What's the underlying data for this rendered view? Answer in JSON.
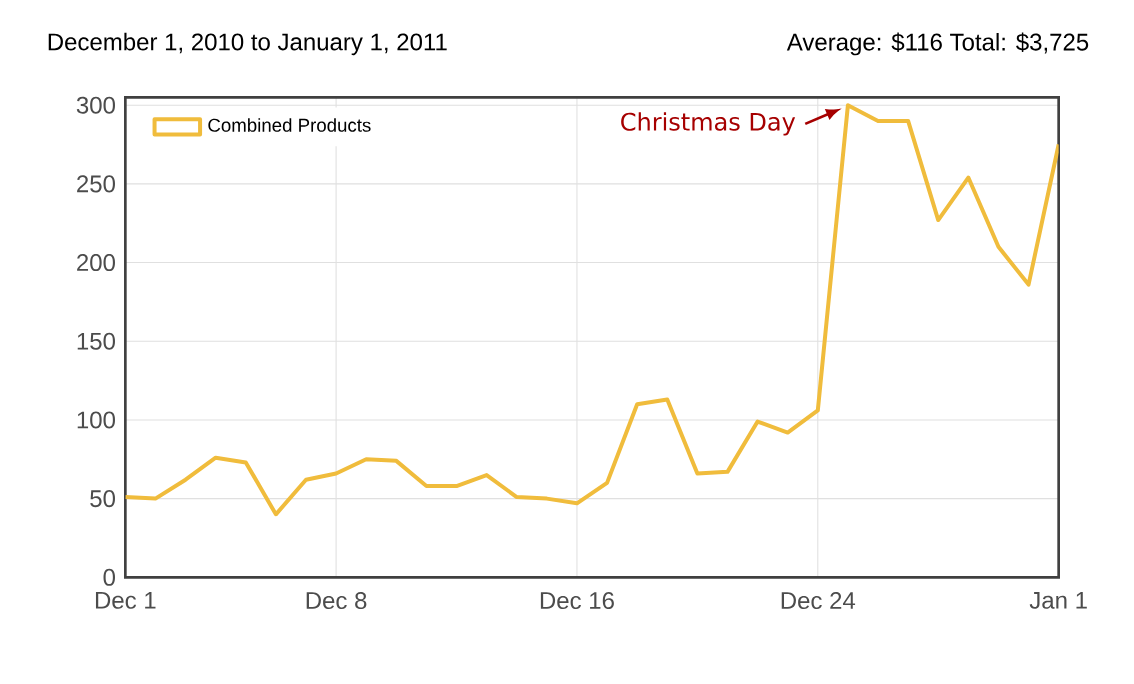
{
  "chart_data": {
    "type": "line",
    "title": "December 1, 2010 to January 1, 2011",
    "subtitle": "Average: $116  Total: $3,725",
    "x": [
      "2010-12-01",
      "2010-12-02",
      "2010-12-03",
      "2010-12-04",
      "2010-12-05",
      "2010-12-06",
      "2010-12-07",
      "2010-12-08",
      "2010-12-09",
      "2010-12-10",
      "2010-12-11",
      "2010-12-12",
      "2010-12-13",
      "2010-12-14",
      "2010-12-15",
      "2010-12-16",
      "2010-12-17",
      "2010-12-18",
      "2010-12-19",
      "2010-12-20",
      "2010-12-21",
      "2010-12-22",
      "2010-12-23",
      "2010-12-24",
      "2010-12-25",
      "2010-12-26",
      "2010-12-27",
      "2010-12-28",
      "2010-12-29",
      "2010-12-30",
      "2010-12-31",
      "2011-01-01"
    ],
    "series": [
      {
        "name": "Combined Products",
        "color": "#f0bc3c",
        "values": [
          51,
          50,
          62,
          76,
          73,
          40,
          62,
          66,
          75,
          74,
          58,
          58,
          65,
          51,
          50,
          47,
          60,
          110,
          113,
          66,
          67,
          99,
          92,
          106,
          300,
          290,
          290,
          227,
          254,
          210,
          186,
          275
        ]
      }
    ],
    "xlim": [
      "2010-12-01",
      "2011-01-01"
    ],
    "xticks": [
      {
        "value": "2010-12-01",
        "label": "Dec 1"
      },
      {
        "value": "2010-12-08",
        "label": "Dec 8"
      },
      {
        "value": "2010-12-16",
        "label": "Dec 16"
      },
      {
        "value": "2010-12-24",
        "label": "Dec 24"
      },
      {
        "value": "2011-01-01",
        "label": "Jan 1"
      }
    ],
    "ylim": [
      0,
      305
    ],
    "yticks": [
      0,
      50,
      100,
      150,
      200,
      250,
      300
    ],
    "annotations": [
      {
        "text": "Christmas Day",
        "x": "2010-12-25",
        "y": 300
      }
    ],
    "grid": true,
    "legend": "top left",
    "marker": "none",
    "line_style": "solid"
  }
}
